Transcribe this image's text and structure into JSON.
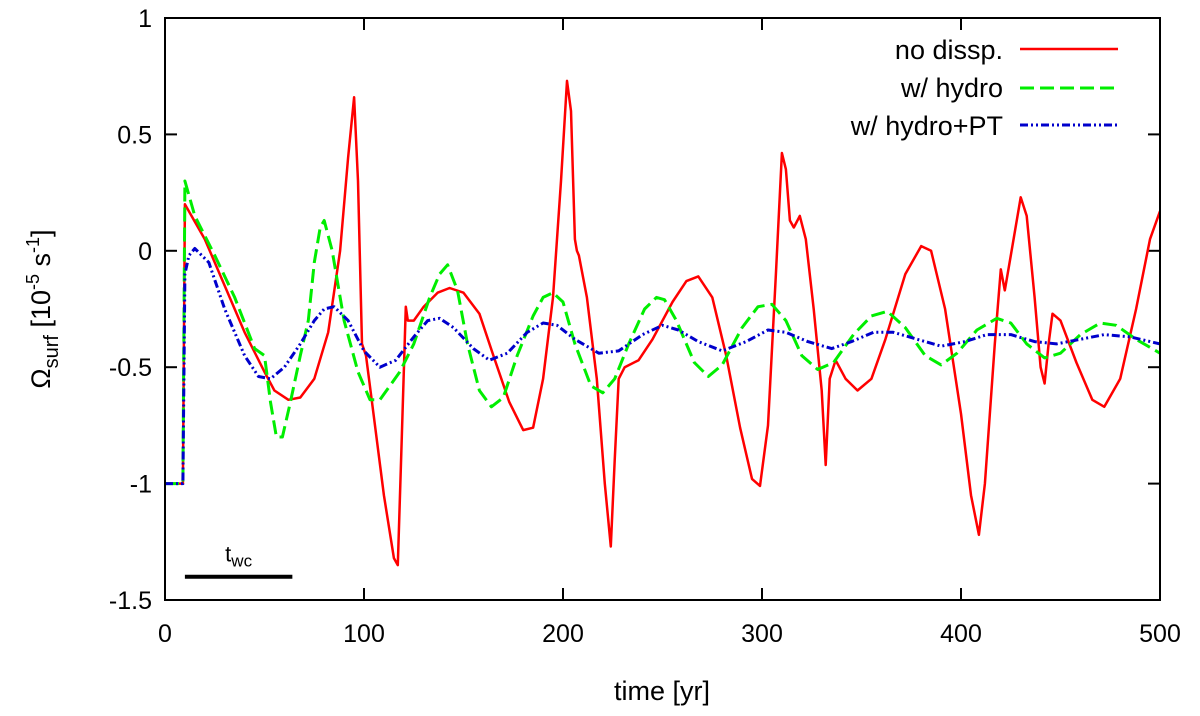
{
  "chart_data": {
    "type": "line",
    "xlabel": "time [yr]",
    "ylabel": {
      "base": "Ω",
      "sub": "surf",
      "unit_prefix": " [10",
      "exp1": "-5",
      "unit_mid": " s",
      "exp2": "-1",
      "unit_suffix": "]"
    },
    "xlim": [
      0,
      500
    ],
    "ylim": [
      -1.5,
      1
    ],
    "xticks": [
      0,
      100,
      200,
      300,
      400,
      500
    ],
    "yticks": [
      -1.5,
      -1,
      -0.5,
      0,
      0.5,
      1
    ],
    "xtick_labels": [
      "0",
      "100",
      "200",
      "300",
      "400",
      "500"
    ],
    "ytick_labels": [
      "-1.5",
      "-1",
      "-0.5",
      "0",
      "0.5",
      "1"
    ],
    "legend_position": "top-right",
    "annotation": {
      "label": "t",
      "sub": "wc",
      "x_start": 10,
      "x_end": 64,
      "y": -1.4
    },
    "series": [
      {
        "name": "no dissp.",
        "color": "#ff0000",
        "dash": "solid",
        "points": [
          [
            0,
            -1
          ],
          [
            9,
            -1
          ],
          [
            10,
            0.2
          ],
          [
            20,
            0.05
          ],
          [
            30,
            -0.15
          ],
          [
            40,
            -0.35
          ],
          [
            50,
            -0.52
          ],
          [
            55,
            -0.6
          ],
          [
            62,
            -0.64
          ],
          [
            68,
            -0.63
          ],
          [
            75,
            -0.55
          ],
          [
            82,
            -0.35
          ],
          [
            88,
            0
          ],
          [
            92,
            0.4
          ],
          [
            95,
            0.66
          ],
          [
            97,
            0.3
          ],
          [
            99,
            -0.4
          ],
          [
            101,
            -0.45
          ],
          [
            104,
            -0.65
          ],
          [
            110,
            -1.05
          ],
          [
            115,
            -1.32
          ],
          [
            117,
            -1.35
          ],
          [
            119,
            -0.8
          ],
          [
            121,
            -0.24
          ],
          [
            122,
            -0.3
          ],
          [
            125,
            -0.3
          ],
          [
            130,
            -0.24
          ],
          [
            137,
            -0.18
          ],
          [
            143,
            -0.16
          ],
          [
            150,
            -0.18
          ],
          [
            158,
            -0.27
          ],
          [
            165,
            -0.45
          ],
          [
            173,
            -0.65
          ],
          [
            180,
            -0.77
          ],
          [
            185,
            -0.76
          ],
          [
            190,
            -0.55
          ],
          [
            195,
            -0.2
          ],
          [
            199,
            0.3
          ],
          [
            202,
            0.73
          ],
          [
            204,
            0.6
          ],
          [
            206,
            0.05
          ],
          [
            207,
            0.0
          ],
          [
            208,
            -0.02
          ],
          [
            212,
            -0.2
          ],
          [
            217,
            -0.55
          ],
          [
            221,
            -1.0
          ],
          [
            224,
            -1.27
          ],
          [
            226,
            -0.9
          ],
          [
            228,
            -0.55
          ],
          [
            231,
            -0.5
          ],
          [
            238,
            -0.47
          ],
          [
            245,
            -0.38
          ],
          [
            255,
            -0.22
          ],
          [
            262,
            -0.13
          ],
          [
            268,
            -0.11
          ],
          [
            275,
            -0.2
          ],
          [
            282,
            -0.45
          ],
          [
            289,
            -0.76
          ],
          [
            295,
            -0.98
          ],
          [
            299,
            -1.01
          ],
          [
            303,
            -0.75
          ],
          [
            307,
            -0.1
          ],
          [
            310,
            0.42
          ],
          [
            312,
            0.35
          ],
          [
            314,
            0.13
          ],
          [
            316,
            0.1
          ],
          [
            319,
            0.15
          ],
          [
            322,
            0.05
          ],
          [
            326,
            -0.25
          ],
          [
            330,
            -0.6
          ],
          [
            332,
            -0.92
          ],
          [
            334,
            -0.55
          ],
          [
            337,
            -0.47
          ],
          [
            342,
            -0.55
          ],
          [
            348,
            -0.6
          ],
          [
            355,
            -0.55
          ],
          [
            362,
            -0.38
          ],
          [
            372,
            -0.1
          ],
          [
            380,
            0.02
          ],
          [
            385,
            0.0
          ],
          [
            392,
            -0.25
          ],
          [
            400,
            -0.7
          ],
          [
            405,
            -1.05
          ],
          [
            409,
            -1.22
          ],
          [
            412,
            -1.0
          ],
          [
            417,
            -0.4
          ],
          [
            420,
            -0.08
          ],
          [
            422,
            -0.17
          ],
          [
            425,
            -0.02
          ],
          [
            430,
            0.23
          ],
          [
            433,
            0.15
          ],
          [
            437,
            -0.2
          ],
          [
            440,
            -0.5
          ],
          [
            442,
            -0.57
          ],
          [
            444,
            -0.4
          ],
          [
            446,
            -0.27
          ],
          [
            450,
            -0.3
          ],
          [
            458,
            -0.48
          ],
          [
            466,
            -0.64
          ],
          [
            472,
            -0.67
          ],
          [
            480,
            -0.55
          ],
          [
            488,
            -0.25
          ],
          [
            495,
            0.05
          ],
          [
            500,
            0.17
          ]
        ]
      },
      {
        "name": "w/ hydro",
        "color": "#00ee00",
        "dash": "14,6",
        "points": [
          [
            0,
            -1
          ],
          [
            9,
            -1
          ],
          [
            10,
            0.3
          ],
          [
            15,
            0.15
          ],
          [
            25,
            -0.02
          ],
          [
            35,
            -0.2
          ],
          [
            45,
            -0.42
          ],
          [
            50,
            -0.45
          ],
          [
            53,
            -0.65
          ],
          [
            56,
            -0.8
          ],
          [
            59,
            -0.8
          ],
          [
            63,
            -0.65
          ],
          [
            68,
            -0.45
          ],
          [
            72,
            -0.3
          ],
          [
            75,
            -0.05
          ],
          [
            78,
            0.1
          ],
          [
            80,
            0.13
          ],
          [
            84,
            0.0
          ],
          [
            90,
            -0.3
          ],
          [
            97,
            -0.52
          ],
          [
            103,
            -0.64
          ],
          [
            108,
            -0.64
          ],
          [
            113,
            -0.58
          ],
          [
            118,
            -0.52
          ],
          [
            125,
            -0.4
          ],
          [
            133,
            -0.2
          ],
          [
            138,
            -0.1
          ],
          [
            142,
            -0.06
          ],
          [
            147,
            -0.17
          ],
          [
            152,
            -0.4
          ],
          [
            158,
            -0.6
          ],
          [
            164,
            -0.67
          ],
          [
            170,
            -0.63
          ],
          [
            177,
            -0.45
          ],
          [
            185,
            -0.28
          ],
          [
            190,
            -0.2
          ],
          [
            195,
            -0.18
          ],
          [
            200,
            -0.22
          ],
          [
            206,
            -0.4
          ],
          [
            214,
            -0.58
          ],
          [
            220,
            -0.61
          ],
          [
            226,
            -0.55
          ],
          [
            233,
            -0.4
          ],
          [
            241,
            -0.25
          ],
          [
            247,
            -0.2
          ],
          [
            251,
            -0.21
          ],
          [
            257,
            -0.3
          ],
          [
            266,
            -0.48
          ],
          [
            273,
            -0.54
          ],
          [
            280,
            -0.49
          ],
          [
            290,
            -0.33
          ],
          [
            298,
            -0.24
          ],
          [
            305,
            -0.23
          ],
          [
            312,
            -0.3
          ],
          [
            320,
            -0.45
          ],
          [
            328,
            -0.51
          ],
          [
            336,
            -0.48
          ],
          [
            346,
            -0.36
          ],
          [
            355,
            -0.28
          ],
          [
            363,
            -0.26
          ],
          [
            372,
            -0.33
          ],
          [
            382,
            -0.45
          ],
          [
            390,
            -0.49
          ],
          [
            398,
            -0.44
          ],
          [
            408,
            -0.34
          ],
          [
            418,
            -0.29
          ],
          [
            425,
            -0.31
          ],
          [
            433,
            -0.4
          ],
          [
            442,
            -0.46
          ],
          [
            450,
            -0.44
          ],
          [
            460,
            -0.36
          ],
          [
            470,
            -0.31
          ],
          [
            478,
            -0.32
          ],
          [
            488,
            -0.38
          ],
          [
            500,
            -0.44
          ]
        ]
      },
      {
        "name": "w/ hydro+PT",
        "color": "#0000cc",
        "dash": "8,3,2,3,2,3",
        "points": [
          [
            0,
            -1
          ],
          [
            9,
            -1
          ],
          [
            10,
            -0.1
          ],
          [
            12,
            -0.02
          ],
          [
            15,
            0.01
          ],
          [
            22,
            -0.05
          ],
          [
            30,
            -0.25
          ],
          [
            40,
            -0.45
          ],
          [
            47,
            -0.54
          ],
          [
            53,
            -0.55
          ],
          [
            60,
            -0.5
          ],
          [
            68,
            -0.4
          ],
          [
            75,
            -0.3
          ],
          [
            80,
            -0.25
          ],
          [
            85,
            -0.24
          ],
          [
            92,
            -0.3
          ],
          [
            100,
            -0.43
          ],
          [
            108,
            -0.5
          ],
          [
            116,
            -0.47
          ],
          [
            125,
            -0.37
          ],
          [
            132,
            -0.3
          ],
          [
            138,
            -0.29
          ],
          [
            145,
            -0.33
          ],
          [
            155,
            -0.42
          ],
          [
            163,
            -0.47
          ],
          [
            172,
            -0.44
          ],
          [
            182,
            -0.35
          ],
          [
            190,
            -0.31
          ],
          [
            197,
            -0.32
          ],
          [
            206,
            -0.38
          ],
          [
            218,
            -0.44
          ],
          [
            228,
            -0.43
          ],
          [
            240,
            -0.36
          ],
          [
            250,
            -0.32
          ],
          [
            258,
            -0.34
          ],
          [
            268,
            -0.39
          ],
          [
            280,
            -0.43
          ],
          [
            292,
            -0.39
          ],
          [
            303,
            -0.34
          ],
          [
            312,
            -0.35
          ],
          [
            323,
            -0.39
          ],
          [
            335,
            -0.42
          ],
          [
            345,
            -0.39
          ],
          [
            356,
            -0.35
          ],
          [
            366,
            -0.35
          ],
          [
            378,
            -0.38
          ],
          [
            390,
            -0.41
          ],
          [
            402,
            -0.39
          ],
          [
            413,
            -0.36
          ],
          [
            425,
            -0.36
          ],
          [
            437,
            -0.39
          ],
          [
            448,
            -0.4
          ],
          [
            460,
            -0.38
          ],
          [
            472,
            -0.36
          ],
          [
            485,
            -0.37
          ],
          [
            500,
            -0.4
          ]
        ]
      }
    ]
  }
}
